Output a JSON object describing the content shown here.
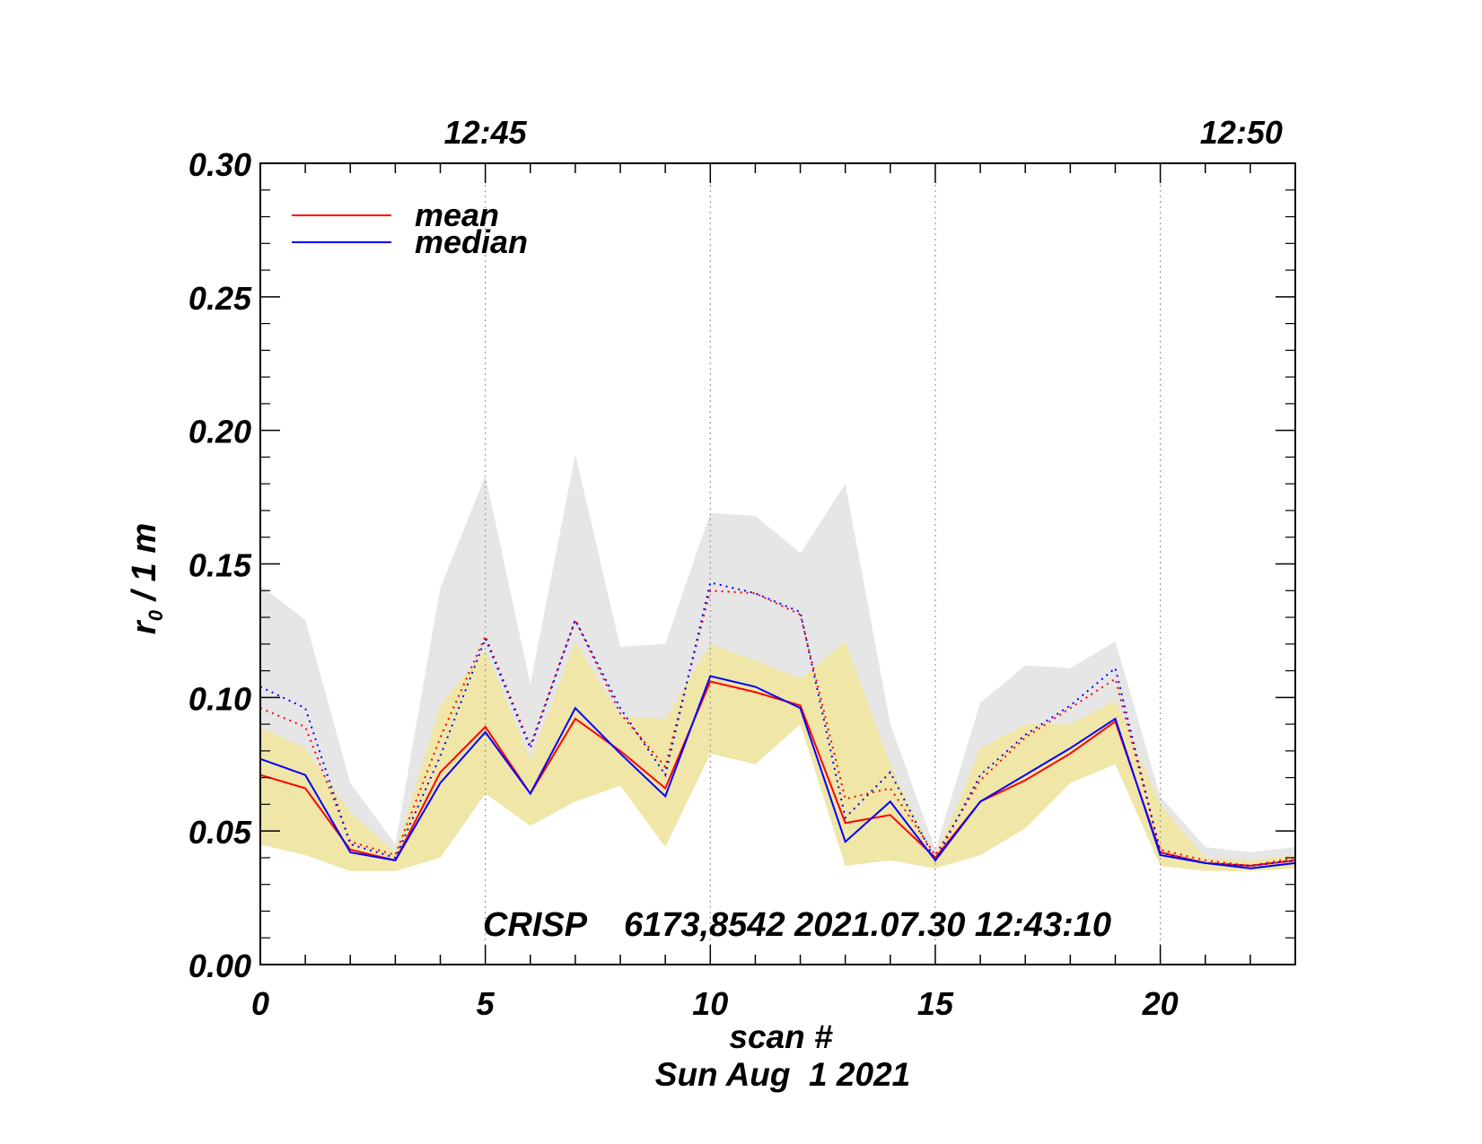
{
  "chart_data": {
    "type": "line",
    "title": "",
    "xlabel": "scan #",
    "date_label": "Sun Aug  1 2021",
    "ylabel_main": "r",
    "ylabel_sub": "0",
    "ylabel_rest": " / 1 m",
    "annotation": "CRISP    6173,8542 2021.07.30 12:43:10",
    "xlim": [
      0,
      23
    ],
    "ylim": [
      0,
      0.3
    ],
    "x_ticks": [
      0,
      5,
      10,
      15,
      20
    ],
    "x_tick_labels": [
      "0",
      "5",
      "10",
      "15",
      "20"
    ],
    "y_ticks": [
      0,
      0.05,
      0.1,
      0.15,
      0.2,
      0.25,
      0.3
    ],
    "y_tick_labels": [
      "0.00",
      "0.05",
      "0.10",
      "0.15",
      "0.20",
      "0.25",
      "0.30"
    ],
    "top_axis": [
      {
        "x": 5,
        "label": "12:45"
      },
      {
        "x": 21.8,
        "label": "12:50"
      }
    ],
    "vertical_gridlines": [
      5,
      10,
      15,
      20
    ],
    "legend": [
      {
        "name": "mean",
        "color": "#ff0000"
      },
      {
        "name": "median",
        "color": "#0000ff"
      }
    ],
    "x": [
      0,
      1,
      2,
      3,
      4,
      5,
      6,
      7,
      8,
      9,
      10,
      11,
      12,
      13,
      14,
      15,
      16,
      17,
      18,
      19,
      20,
      21,
      22,
      23
    ],
    "bands": [
      {
        "name": "dotted range",
        "color": "#e6e6e6",
        "upper": [
          0.142,
          0.129,
          0.068,
          0.045,
          0.141,
          0.183,
          0.105,
          0.191,
          0.119,
          0.12,
          0.169,
          0.168,
          0.154,
          0.18,
          0.09,
          0.043,
          0.098,
          0.112,
          0.111,
          0.121,
          0.063,
          0.044,
          0.042,
          0.044
        ],
        "lower": [
          0.045,
          0.041,
          0.035,
          0.035,
          0.04,
          0.064,
          0.052,
          0.061,
          0.067,
          0.044,
          0.079,
          0.075,
          0.09,
          0.037,
          0.039,
          0.036,
          0.041,
          0.051,
          0.068,
          0.075,
          0.037,
          0.035,
          0.035,
          0.036
        ]
      },
      {
        "name": "solid range",
        "color": "#efe6a8",
        "upper": [
          0.089,
          0.081,
          0.057,
          0.042,
          0.097,
          0.118,
          0.077,
          0.121,
          0.093,
          0.092,
          0.12,
          0.114,
          0.107,
          0.121,
          0.075,
          0.04,
          0.081,
          0.09,
          0.09,
          0.099,
          0.06,
          0.04,
          0.039,
          0.041
        ],
        "lower": [
          0.045,
          0.041,
          0.035,
          0.035,
          0.04,
          0.064,
          0.052,
          0.061,
          0.067,
          0.044,
          0.079,
          0.075,
          0.09,
          0.037,
          0.039,
          0.036,
          0.041,
          0.051,
          0.068,
          0.075,
          0.037,
          0.035,
          0.035,
          0.036
        ]
      }
    ],
    "series": [
      {
        "name": "mean (solid)",
        "color": "#ff0000",
        "style": "solid",
        "values": [
          0.071,
          0.066,
          0.043,
          0.039,
          0.072,
          0.089,
          0.064,
          0.092,
          0.08,
          0.066,
          0.106,
          0.102,
          0.097,
          0.053,
          0.056,
          0.04,
          0.061,
          0.069,
          0.079,
          0.091,
          0.042,
          0.038,
          0.037,
          0.039
        ]
      },
      {
        "name": "median (solid)",
        "color": "#0000ff",
        "style": "solid",
        "values": [
          0.077,
          0.071,
          0.042,
          0.039,
          0.068,
          0.087,
          0.064,
          0.096,
          0.079,
          0.063,
          0.108,
          0.104,
          0.096,
          0.046,
          0.061,
          0.039,
          0.061,
          0.071,
          0.081,
          0.092,
          0.041,
          0.038,
          0.036,
          0.038
        ]
      },
      {
        "name": "mean (dotted)",
        "color": "#ff0000",
        "style": "dotted",
        "values": [
          0.096,
          0.089,
          0.046,
          0.041,
          0.085,
          0.123,
          0.082,
          0.129,
          0.094,
          0.074,
          0.14,
          0.139,
          0.131,
          0.062,
          0.066,
          0.041,
          0.069,
          0.085,
          0.096,
          0.107,
          0.043,
          0.039,
          0.037,
          0.04
        ]
      },
      {
        "name": "median (dotted)",
        "color": "#0000ff",
        "style": "dotted",
        "values": [
          0.104,
          0.096,
          0.045,
          0.04,
          0.078,
          0.122,
          0.081,
          0.129,
          0.096,
          0.071,
          0.143,
          0.139,
          0.132,
          0.055,
          0.072,
          0.039,
          0.071,
          0.086,
          0.097,
          0.111,
          0.042,
          0.038,
          0.037,
          0.039
        ]
      }
    ]
  }
}
